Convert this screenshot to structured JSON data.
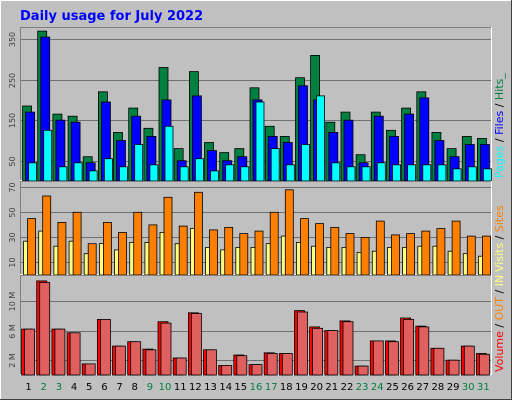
{
  "title": "Daily usage for July 2022",
  "colors": {
    "background": "#c0c0c0",
    "title": "#0000ff",
    "hits": "#008040",
    "files": "#0000ff",
    "pages": "#00ffff",
    "visits": "#ffff80",
    "sites": "#ff8000",
    "kbin": "#ffd060",
    "kbout": "#ff0000",
    "volume": "#e06060",
    "weekend_day": "#008040",
    "weekday": "#000000"
  },
  "right_labels": {
    "top": {
      "pages": "Pages",
      "sep1": " / ",
      "files": "Files",
      "sep2": " / ",
      "hits": "Hits_"
    },
    "middle": {
      "visits": "Visits",
      "sep1": " / ",
      "sites": "Sites"
    },
    "bottom": {
      "volume": "Volume",
      "sep1": " / ",
      "out": "OUT",
      "sep2": " / ",
      "in": "IN"
    }
  },
  "chart_data": [
    {
      "type": "bar",
      "title": "Daily usage for July 2022",
      "x": [
        "1",
        "2",
        "3",
        "4",
        "5",
        "6",
        "7",
        "8",
        "9",
        "10",
        "11",
        "12",
        "13",
        "14",
        "15",
        "16",
        "17",
        "18",
        "19",
        "20",
        "21",
        "22",
        "23",
        "24",
        "25",
        "26",
        "27",
        "28",
        "29",
        "30",
        "31"
      ],
      "weekend_days": [
        "2",
        "3",
        "9",
        "10",
        "16",
        "17",
        "23",
        "24",
        "30",
        "31"
      ],
      "ylim": [
        0,
        380
      ],
      "yticks": [
        50,
        150,
        250,
        350
      ],
      "series": [
        {
          "name": "Hits",
          "values": [
            185,
            370,
            165,
            160,
            60,
            220,
            120,
            180,
            130,
            280,
            80,
            270,
            95,
            70,
            80,
            230,
            135,
            110,
            255,
            310,
            145,
            170,
            65,
            170,
            125,
            180,
            220,
            120,
            80,
            110,
            105
          ]
        },
        {
          "name": "Files",
          "values": [
            170,
            355,
            150,
            145,
            45,
            195,
            100,
            160,
            110,
            200,
            50,
            210,
            75,
            50,
            60,
            200,
            110,
            95,
            235,
            200,
            120,
            150,
            45,
            160,
            110,
            165,
            205,
            100,
            60,
            90,
            90
          ]
        },
        {
          "name": "Pages",
          "values": [
            45,
            125,
            35,
            45,
            25,
            55,
            35,
            90,
            40,
            135,
            35,
            55,
            25,
            40,
            35,
            195,
            80,
            40,
            90,
            210,
            45,
            35,
            35,
            45,
            40,
            40,
            40,
            40,
            30,
            35,
            30
          ]
        }
      ]
    },
    {
      "type": "bar",
      "x": [
        "1",
        "2",
        "3",
        "4",
        "5",
        "6",
        "7",
        "8",
        "9",
        "10",
        "11",
        "12",
        "13",
        "14",
        "15",
        "16",
        "17",
        "18",
        "19",
        "20",
        "21",
        "22",
        "23",
        "24",
        "25",
        "26",
        "27",
        "28",
        "29",
        "30",
        "31"
      ],
      "ylim": [
        0,
        75
      ],
      "yticks": [
        10,
        30,
        50,
        70
      ],
      "series": [
        {
          "name": "Visits",
          "values": [
            27,
            35,
            23,
            27,
            17,
            25,
            20,
            26,
            26,
            34,
            25,
            37,
            22,
            20,
            22,
            22,
            25,
            31,
            26,
            23,
            22,
            22,
            18,
            19,
            22,
            22,
            23,
            23,
            19,
            17,
            15
          ]
        },
        {
          "name": "Sites",
          "values": [
            45,
            63,
            42,
            50,
            25,
            42,
            34,
            50,
            40,
            62,
            39,
            66,
            36,
            38,
            33,
            35,
            50,
            68,
            45,
            41,
            38,
            33,
            30,
            43,
            32,
            33,
            35,
            37,
            43,
            31,
            31
          ]
        }
      ]
    },
    {
      "type": "bar",
      "x": [
        "1",
        "2",
        "3",
        "4",
        "5",
        "6",
        "7",
        "8",
        "9",
        "10",
        "11",
        "12",
        "13",
        "14",
        "15",
        "16",
        "17",
        "18",
        "19",
        "20",
        "21",
        "22",
        "23",
        "24",
        "25",
        "26",
        "27",
        "28",
        "29",
        "30",
        "31"
      ],
      "ylim": [
        0,
        13.5
      ],
      "yticks": [
        2,
        6,
        10
      ],
      "yticklabels": [
        "2 M",
        "6 M",
        "10 M"
      ],
      "series": [
        {
          "name": "OUT",
          "values": [
            6.2,
            12.7,
            6.2,
            5.7,
            1.5,
            7.5,
            3.9,
            4.5,
            3.5,
            7.2,
            2.3,
            8.4,
            3.4,
            1.3,
            2.7,
            1.4,
            3.0,
            2.9,
            8.7,
            6.5,
            6.0,
            7.3,
            1.2,
            4.6,
            4.6,
            7.7,
            6.6,
            3.6,
            2.0,
            3.9,
            2.9
          ]
        },
        {
          "name": "IN",
          "values": [
            6.2,
            12.5,
            6.2,
            5.7,
            1.5,
            7.5,
            3.9,
            4.5,
            3.4,
            7.0,
            2.3,
            8.3,
            3.4,
            1.3,
            2.6,
            1.4,
            2.9,
            2.9,
            8.5,
            6.3,
            6.0,
            7.2,
            1.2,
            4.6,
            4.5,
            7.5,
            6.5,
            3.6,
            2.0,
            3.9,
            2.8
          ]
        }
      ]
    }
  ]
}
